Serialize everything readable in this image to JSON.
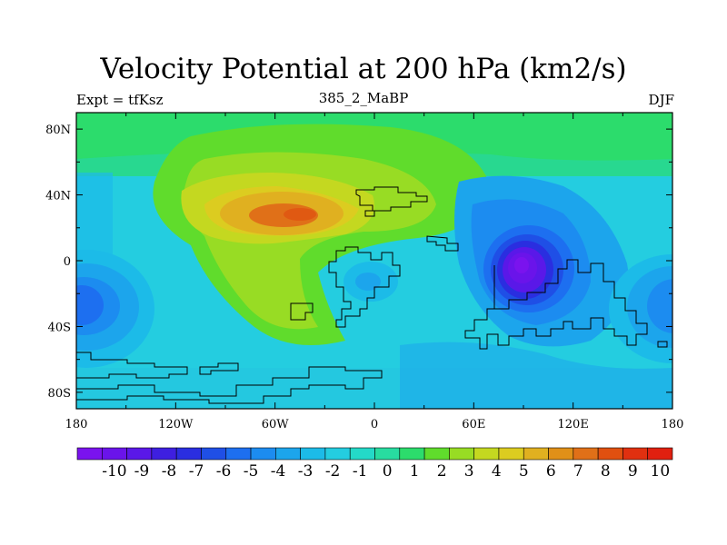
{
  "title": "Velocity Potential at 200 hPa (km2/s)",
  "left_string": "Expt = tfKsz",
  "center_string": "385_2_MaBP",
  "right_string": "DJF",
  "chart_data": {
    "type": "heatmap",
    "title": "Velocity Potential at 200 hPa (km2/s)",
    "units": "km2/s",
    "level": "200 hPa",
    "season": "DJF",
    "experiment": "tfKsz",
    "case": "385_2_MaBP",
    "xlim": [
      -180,
      180
    ],
    "ylim": [
      -90,
      90
    ],
    "x_ticks": [
      {
        "value": -180,
        "label": "180"
      },
      {
        "value": -120,
        "label": "120W"
      },
      {
        "value": -60,
        "label": "60W"
      },
      {
        "value": 0,
        "label": "0"
      },
      {
        "value": 60,
        "label": "60E"
      },
      {
        "value": 120,
        "label": "120E"
      },
      {
        "value": 180,
        "label": "180"
      }
    ],
    "y_ticks": [
      {
        "value": 80,
        "label": "80N"
      },
      {
        "value": 40,
        "label": "40N"
      },
      {
        "value": 0,
        "label": "0"
      },
      {
        "value": -40,
        "label": "40S"
      },
      {
        "value": -80,
        "label": "80S"
      }
    ],
    "colorbar_labels": [
      "-10",
      "-9",
      "-8",
      "-7",
      "-6",
      "-5",
      "-4",
      "-3",
      "-2",
      "-1",
      "0",
      "1",
      "2",
      "3",
      "4",
      "5",
      "6",
      "7",
      "8",
      "9",
      "10"
    ],
    "colorbar_colors": [
      "#7a13ee",
      "#6a14ea",
      "#5a18e8",
      "#3e1fe0",
      "#2a2ee0",
      "#1f4fe6",
      "#1d6ff0",
      "#1c8cf0",
      "#1ca5ec",
      "#1cbbe8",
      "#24cde0",
      "#24d9c8",
      "#28dca0",
      "#2cdc6c",
      "#60dc2c",
      "#98dc24",
      "#c4d820",
      "#dccc20",
      "#e0b020",
      "#e09018",
      "#e07018",
      "#e05010",
      "#e03010",
      "#e02010"
    ],
    "features": [
      {
        "name": "positive maximum",
        "lon": -60,
        "lat": 27,
        "value": 8
      },
      {
        "name": "negative minimum",
        "lon": 93,
        "lat": -7,
        "value": -9.5
      },
      {
        "name": "secondary negative minimum",
        "lon": -170,
        "lat": -27,
        "value": -4
      },
      {
        "name": "secondary negative minimum",
        "lon": 175,
        "lat": -27,
        "value": -4
      }
    ]
  }
}
